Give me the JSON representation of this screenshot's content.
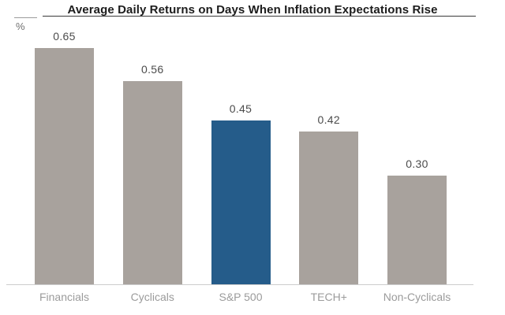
{
  "title": "Average Daily Returns on Days When Inflation Expectations Rise",
  "colors": {
    "bar_default": "#A8A29D",
    "bar_highlight": "#255C8A",
    "title_text": "#1C1C1C",
    "title_underline": "#3A3A3A",
    "left_rule": "#9C9C9C",
    "unit_text": "#707070",
    "value_text": "#4B4B4B",
    "category_text": "#9B9B9B",
    "axis_line": "#CCCCCC",
    "background": "#FFFFFF"
  },
  "chart_data": {
    "type": "bar",
    "title": "Average Daily Returns on Days When Inflation Expectations Rise",
    "xlabel": "",
    "ylabel": "%",
    "categories": [
      "Financials",
      "Cyclicals",
      "S&P 500",
      "TECH+",
      "Non-Cyclicals"
    ],
    "values": [
      0.65,
      0.56,
      0.45,
      0.42,
      0.3
    ],
    "value_labels": [
      "0.65",
      "0.56",
      "0.45",
      "0.42",
      "0.30"
    ],
    "highlight_category": "S&P 500",
    "ylim": [
      0,
      0.72
    ],
    "grid": false,
    "legend": false,
    "y_axis_ticks_visible": false,
    "value_labels_position": "above-bars"
  }
}
